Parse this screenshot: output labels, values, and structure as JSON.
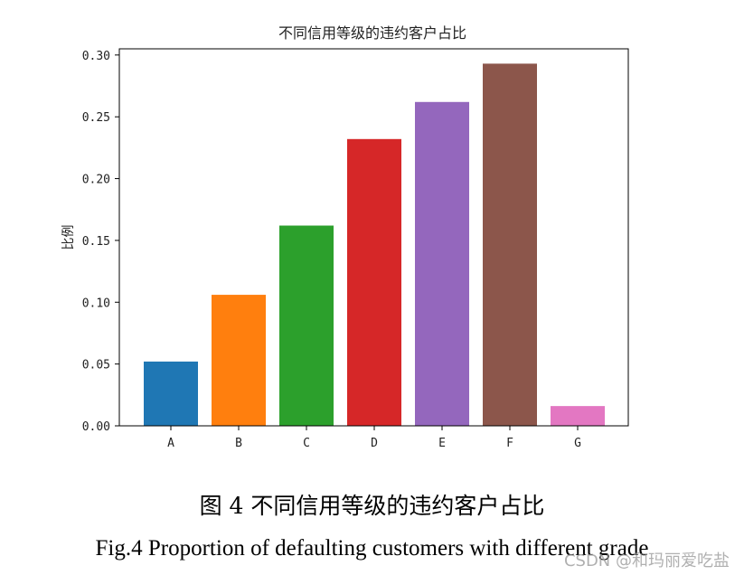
{
  "chart_data": {
    "type": "bar",
    "title": "不同信用等级的违约客户占比",
    "xlabel": "",
    "ylabel": "比例",
    "categories": [
      "A",
      "B",
      "C",
      "D",
      "E",
      "F",
      "G"
    ],
    "values": [
      0.052,
      0.106,
      0.162,
      0.232,
      0.262,
      0.293,
      0.016
    ],
    "colors": [
      "#1f77b4",
      "#ff7f0e",
      "#2ca02c",
      "#d62728",
      "#9467bd",
      "#8c564b",
      "#e377c2"
    ],
    "ylim": [
      0,
      0.305
    ],
    "yticks": [
      "0.00",
      "0.05",
      "0.10",
      "0.15",
      "0.20",
      "0.25",
      "0.30"
    ],
    "grid": false,
    "legend": "none"
  },
  "caption": {
    "cn": "图 4 不同信用等级的违约客户占比",
    "en": "Fig.4 Proportion of defaulting customers with different grade"
  },
  "watermark": "CSDN @和玛丽爱吃盐"
}
